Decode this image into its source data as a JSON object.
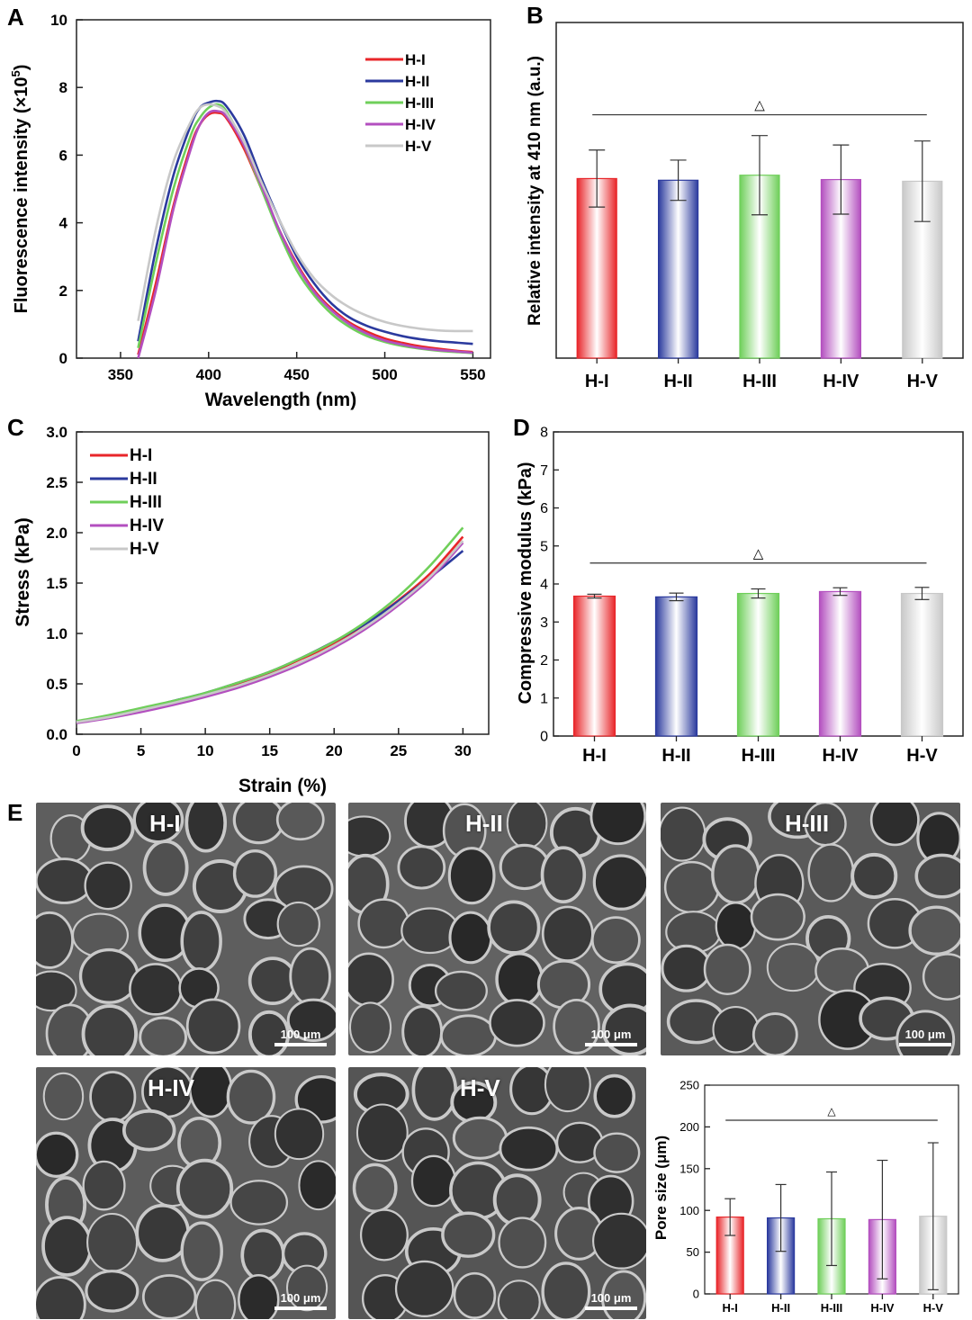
{
  "panel_letters": {
    "A": "A",
    "B": "B",
    "C": "C",
    "D": "D",
    "E": "E"
  },
  "series_names": [
    "H-I",
    "H-II",
    "H-III",
    "H-IV",
    "H-V"
  ],
  "series_colors": [
    "#e8262a",
    "#2b3a9e",
    "#6fcf5a",
    "#b34fbf",
    "#c8c8c8"
  ],
  "sem_images": [
    {
      "label": "H-I",
      "scale": "100 μm"
    },
    {
      "label": "H-II",
      "scale": "100 μm"
    },
    {
      "label": "H-III",
      "scale": "100 μm"
    },
    {
      "label": "H-IV",
      "scale": "100 μm"
    },
    {
      "label": "H-V",
      "scale": "100 μm"
    }
  ],
  "chart_data": [
    {
      "panel": "A",
      "type": "line",
      "xlabel": "Wavelength (nm)",
      "ylabel": "Fluorescence intensity (×10",
      "ylabel_sup": "5",
      "ylabel_tail": ")",
      "xlim": [
        325,
        560
      ],
      "ylim": [
        0,
        10
      ],
      "xticks": [
        350,
        400,
        450,
        500,
        550
      ],
      "yticks": [
        0,
        2,
        4,
        6,
        8,
        10
      ],
      "legend": "top-right",
      "x": [
        360,
        370,
        380,
        390,
        395,
        400,
        405,
        410,
        420,
        430,
        440,
        450,
        460,
        470,
        480,
        490,
        500,
        510,
        520,
        530,
        540,
        550
      ],
      "series": [
        {
          "name": "H-I",
          "values": [
            0.1,
            2.2,
            4.5,
            6.3,
            6.9,
            7.2,
            7.25,
            7.1,
            6.2,
            5.0,
            3.8,
            2.8,
            2.0,
            1.45,
            1.05,
            0.78,
            0.58,
            0.45,
            0.35,
            0.28,
            0.22,
            0.18
          ]
        },
        {
          "name": "H-II",
          "values": [
            0.5,
            3.2,
            5.4,
            6.9,
            7.4,
            7.55,
            7.6,
            7.45,
            6.6,
            5.3,
            4.1,
            3.0,
            2.2,
            1.6,
            1.2,
            0.95,
            0.78,
            0.65,
            0.56,
            0.5,
            0.46,
            0.42
          ]
        },
        {
          "name": "H-III",
          "values": [
            0.3,
            2.8,
            5.0,
            6.6,
            7.1,
            7.4,
            7.5,
            7.3,
            6.3,
            5.0,
            3.7,
            2.6,
            1.85,
            1.3,
            0.92,
            0.65,
            0.48,
            0.36,
            0.28,
            0.22,
            0.18,
            0.15
          ]
        },
        {
          "name": "H-IV",
          "values": [
            0.0,
            2.0,
            4.4,
            6.2,
            6.9,
            7.25,
            7.3,
            7.15,
            6.3,
            5.1,
            3.8,
            2.75,
            1.95,
            1.4,
            1.0,
            0.72,
            0.52,
            0.4,
            0.3,
            0.24,
            0.2,
            0.16
          ]
        },
        {
          "name": "H-V",
          "values": [
            1.1,
            3.8,
            5.8,
            7.0,
            7.4,
            7.5,
            7.45,
            7.25,
            6.4,
            5.2,
            4.1,
            3.1,
            2.35,
            1.85,
            1.5,
            1.25,
            1.07,
            0.95,
            0.87,
            0.82,
            0.8,
            0.8
          ]
        }
      ]
    },
    {
      "panel": "B",
      "type": "bar",
      "ylabel": "Relative intensity at 410 nm (a.u.)",
      "categories": [
        "H-I",
        "H-II",
        "H-III",
        "H-IV",
        "H-V"
      ],
      "ylim": [
        0,
        10
      ],
      "yticks_shown": false,
      "values": [
        5.35,
        5.3,
        5.45,
        5.32,
        5.27
      ],
      "errors": [
        0.85,
        0.6,
        1.18,
        1.03,
        1.2
      ],
      "significance_symbol": "△"
    },
    {
      "panel": "C",
      "type": "line",
      "xlabel": "Strain (%)",
      "ylabel": "Stress (kPa)",
      "xlim": [
        0,
        32
      ],
      "ylim": [
        0,
        3.0
      ],
      "xticks": [
        0,
        5,
        10,
        15,
        20,
        25,
        30
      ],
      "yticks": [
        0.0,
        0.5,
        1.0,
        1.5,
        2.0,
        2.5,
        3.0
      ],
      "legend": "top-left",
      "x": [
        0,
        2.5,
        5,
        7.5,
        10,
        12.5,
        15,
        17.5,
        20,
        22.5,
        25,
        27.5,
        30
      ],
      "series": [
        {
          "name": "H-I",
          "values": [
            0.12,
            0.18,
            0.25,
            0.32,
            0.4,
            0.5,
            0.61,
            0.75,
            0.9,
            1.1,
            1.33,
            1.6,
            1.96
          ]
        },
        {
          "name": "H-II",
          "values": [
            0.12,
            0.18,
            0.25,
            0.33,
            0.41,
            0.51,
            0.62,
            0.76,
            0.92,
            1.1,
            1.32,
            1.56,
            1.82
          ]
        },
        {
          "name": "H-III",
          "values": [
            0.13,
            0.19,
            0.26,
            0.33,
            0.41,
            0.51,
            0.62,
            0.76,
            0.92,
            1.12,
            1.37,
            1.68,
            2.05
          ]
        },
        {
          "name": "H-IV",
          "values": [
            0.11,
            0.16,
            0.22,
            0.29,
            0.37,
            0.46,
            0.57,
            0.7,
            0.86,
            1.05,
            1.28,
            1.55,
            1.9
          ]
        },
        {
          "name": "H-V",
          "values": [
            0.12,
            0.17,
            0.24,
            0.31,
            0.39,
            0.48,
            0.59,
            0.72,
            0.88,
            1.07,
            1.3,
            1.57,
            1.92
          ]
        }
      ]
    },
    {
      "panel": "D",
      "type": "bar",
      "ylabel": "Compressive modulus (kPa)",
      "categories": [
        "H-I",
        "H-II",
        "H-III",
        "H-IV",
        "H-V"
      ],
      "ylim": [
        0,
        8
      ],
      "yticks": [
        0,
        1,
        2,
        3,
        4,
        5,
        6,
        7,
        8
      ],
      "values": [
        3.68,
        3.66,
        3.75,
        3.8,
        3.75
      ],
      "errors": [
        0.05,
        0.1,
        0.12,
        0.1,
        0.16
      ],
      "significance_symbol": "△"
    },
    {
      "panel": "E",
      "type": "bar",
      "ylabel": "Pore size (μm)",
      "categories": [
        "H-I",
        "H-II",
        "H-III",
        "H-IV",
        "H-V"
      ],
      "ylim": [
        0,
        250
      ],
      "yticks": [
        0,
        50,
        100,
        150,
        200,
        250
      ],
      "values": [
        92,
        91,
        90,
        89,
        93
      ],
      "errors": [
        22,
        40,
        56,
        71,
        88
      ],
      "significance_symbol": "△"
    }
  ]
}
